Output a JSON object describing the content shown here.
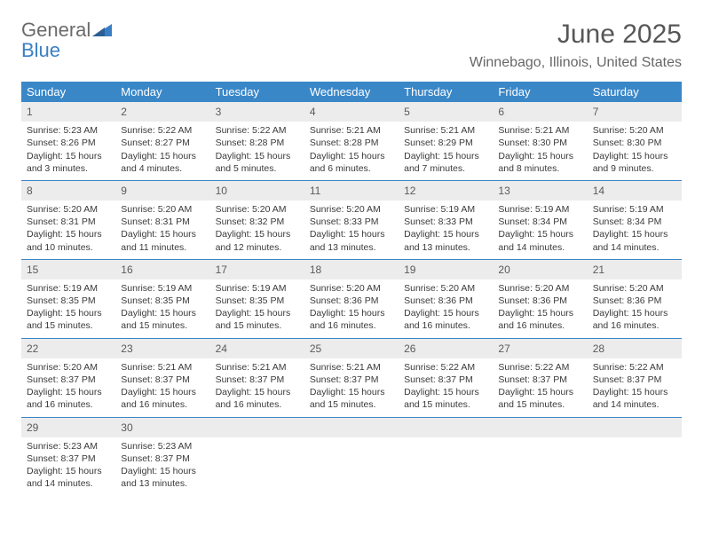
{
  "logo": {
    "word1": "General",
    "word2": "Blue"
  },
  "title": "June 2025",
  "location": "Winnebago, Illinois, United States",
  "colors": {
    "header_bg": "#3a87c8",
    "header_fg": "#ffffff",
    "daynum_bg": "#ececec",
    "week_divider": "#3a87c8",
    "text": "#3a3a3a",
    "title": "#575757",
    "subtitle": "#676767",
    "logo_gray": "#6b6b6b",
    "logo_blue": "#3a7fc4"
  },
  "dow": [
    "Sunday",
    "Monday",
    "Tuesday",
    "Wednesday",
    "Thursday",
    "Friday",
    "Saturday"
  ],
  "weeks": [
    [
      {
        "n": "1",
        "sr": "5:23 AM",
        "ss": "8:26 PM",
        "dl": "15 hours and 3 minutes."
      },
      {
        "n": "2",
        "sr": "5:22 AM",
        "ss": "8:27 PM",
        "dl": "15 hours and 4 minutes."
      },
      {
        "n": "3",
        "sr": "5:22 AM",
        "ss": "8:28 PM",
        "dl": "15 hours and 5 minutes."
      },
      {
        "n": "4",
        "sr": "5:21 AM",
        "ss": "8:28 PM",
        "dl": "15 hours and 6 minutes."
      },
      {
        "n": "5",
        "sr": "5:21 AM",
        "ss": "8:29 PM",
        "dl": "15 hours and 7 minutes."
      },
      {
        "n": "6",
        "sr": "5:21 AM",
        "ss": "8:30 PM",
        "dl": "15 hours and 8 minutes."
      },
      {
        "n": "7",
        "sr": "5:20 AM",
        "ss": "8:30 PM",
        "dl": "15 hours and 9 minutes."
      }
    ],
    [
      {
        "n": "8",
        "sr": "5:20 AM",
        "ss": "8:31 PM",
        "dl": "15 hours and 10 minutes."
      },
      {
        "n": "9",
        "sr": "5:20 AM",
        "ss": "8:31 PM",
        "dl": "15 hours and 11 minutes."
      },
      {
        "n": "10",
        "sr": "5:20 AM",
        "ss": "8:32 PM",
        "dl": "15 hours and 12 minutes."
      },
      {
        "n": "11",
        "sr": "5:20 AM",
        "ss": "8:33 PM",
        "dl": "15 hours and 13 minutes."
      },
      {
        "n": "12",
        "sr": "5:19 AM",
        "ss": "8:33 PM",
        "dl": "15 hours and 13 minutes."
      },
      {
        "n": "13",
        "sr": "5:19 AM",
        "ss": "8:34 PM",
        "dl": "15 hours and 14 minutes."
      },
      {
        "n": "14",
        "sr": "5:19 AM",
        "ss": "8:34 PM",
        "dl": "15 hours and 14 minutes."
      }
    ],
    [
      {
        "n": "15",
        "sr": "5:19 AM",
        "ss": "8:35 PM",
        "dl": "15 hours and 15 minutes."
      },
      {
        "n": "16",
        "sr": "5:19 AM",
        "ss": "8:35 PM",
        "dl": "15 hours and 15 minutes."
      },
      {
        "n": "17",
        "sr": "5:19 AM",
        "ss": "8:35 PM",
        "dl": "15 hours and 15 minutes."
      },
      {
        "n": "18",
        "sr": "5:20 AM",
        "ss": "8:36 PM",
        "dl": "15 hours and 16 minutes."
      },
      {
        "n": "19",
        "sr": "5:20 AM",
        "ss": "8:36 PM",
        "dl": "15 hours and 16 minutes."
      },
      {
        "n": "20",
        "sr": "5:20 AM",
        "ss": "8:36 PM",
        "dl": "15 hours and 16 minutes."
      },
      {
        "n": "21",
        "sr": "5:20 AM",
        "ss": "8:36 PM",
        "dl": "15 hours and 16 minutes."
      }
    ],
    [
      {
        "n": "22",
        "sr": "5:20 AM",
        "ss": "8:37 PM",
        "dl": "15 hours and 16 minutes."
      },
      {
        "n": "23",
        "sr": "5:21 AM",
        "ss": "8:37 PM",
        "dl": "15 hours and 16 minutes."
      },
      {
        "n": "24",
        "sr": "5:21 AM",
        "ss": "8:37 PM",
        "dl": "15 hours and 16 minutes."
      },
      {
        "n": "25",
        "sr": "5:21 AM",
        "ss": "8:37 PM",
        "dl": "15 hours and 15 minutes."
      },
      {
        "n": "26",
        "sr": "5:22 AM",
        "ss": "8:37 PM",
        "dl": "15 hours and 15 minutes."
      },
      {
        "n": "27",
        "sr": "5:22 AM",
        "ss": "8:37 PM",
        "dl": "15 hours and 15 minutes."
      },
      {
        "n": "28",
        "sr": "5:22 AM",
        "ss": "8:37 PM",
        "dl": "15 hours and 14 minutes."
      }
    ],
    [
      {
        "n": "29",
        "sr": "5:23 AM",
        "ss": "8:37 PM",
        "dl": "15 hours and 14 minutes."
      },
      {
        "n": "30",
        "sr": "5:23 AM",
        "ss": "8:37 PM",
        "dl": "15 hours and 13 minutes."
      },
      null,
      null,
      null,
      null,
      null
    ]
  ],
  "labels": {
    "sunrise": "Sunrise:",
    "sunset": "Sunset:",
    "daylight": "Daylight:"
  }
}
